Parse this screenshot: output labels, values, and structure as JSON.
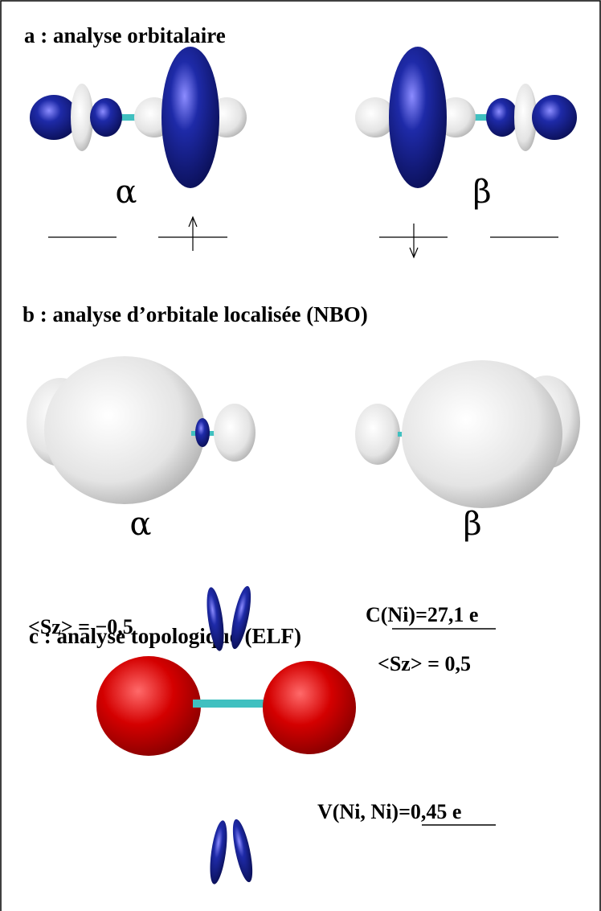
{
  "panels": [
    {
      "title": "a : analyse orbitalaire",
      "labels": [
        "α",
        "β"
      ]
    },
    {
      "title": "b : analyse d’orbitale localisée (NBO)",
      "labels": [
        "α",
        "β"
      ]
    },
    {
      "title": "c : analyse topologique (ELF)",
      "annotations": [
        "<Sz> = −0,5",
        "C(Ni)=27,1 e",
        "<Sz> = 0,5",
        "V(Ni, Ni)=0,45 e"
      ]
    }
  ]
}
